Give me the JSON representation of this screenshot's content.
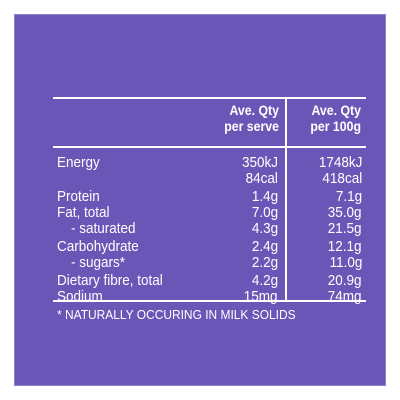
{
  "colors": {
    "panel_background": "#6a56b6",
    "text": "#ffffff"
  },
  "header": {
    "per_serve": "Ave. Qty\nper serve",
    "per_100g": "Ave. Qty\nper 100g"
  },
  "rows": [
    {
      "label": "Energy",
      "per_serve": "350kJ",
      "per_100g": "1748kJ",
      "indent": false
    },
    {
      "label": "",
      "per_serve": "84cal",
      "per_100g": "418cal",
      "indent": false
    },
    {
      "label": "Protein",
      "per_serve": "1.4g",
      "per_100g": "7.1g",
      "indent": false
    },
    {
      "label": "Fat, total",
      "per_serve": "7.0g",
      "per_100g": "35.0g",
      "indent": false
    },
    {
      "label": "- saturated",
      "per_serve": "4.3g",
      "per_100g": "21.5g",
      "indent": true
    },
    {
      "label": "Carbohydrate",
      "per_serve": "2.4g",
      "per_100g": "12.1g",
      "indent": false
    },
    {
      "label": "- sugars*",
      "per_serve": "2.2g",
      "per_100g": "11.0g",
      "indent": true
    },
    {
      "label": "Dietary fibre, total",
      "per_serve": "4.2g",
      "per_100g": "20.9g",
      "indent": false
    },
    {
      "label": "Sodium",
      "per_serve": "15mg",
      "per_100g": "74mg",
      "indent": false
    }
  ],
  "footnote": "* NATURALLY OCCURING IN MILK SOLIDS"
}
